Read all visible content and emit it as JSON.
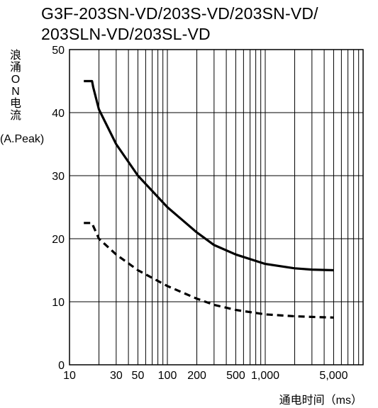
{
  "chart_data": {
    "type": "line",
    "title_lines": [
      "G3F-203SN-VD/203S-VD/203SN-VD/",
      "203SLN-VD/203SL-VD"
    ],
    "ylabel_chars": [
      "浪",
      "涌",
      "O",
      "N",
      "电",
      "流"
    ],
    "y_unit": "(A.Peak)",
    "xlabel": "通电时间（ms）",
    "x_scale": "log",
    "xlim": [
      10,
      10000
    ],
    "ylim": [
      0,
      50
    ],
    "grid": true,
    "x_ticks": [
      {
        "value": 10,
        "label": "10"
      },
      {
        "value": 30,
        "label": "30"
      },
      {
        "value": 50,
        "label": "50"
      },
      {
        "value": 100,
        "label": "100"
      },
      {
        "value": 200,
        "label": "200"
      },
      {
        "value": 500,
        "label": "500"
      },
      {
        "value": 1000,
        "label": "1,000"
      },
      {
        "value": 5000,
        "label": "5,000"
      }
    ],
    "y_ticks": [
      0,
      10,
      20,
      30,
      40,
      50
    ],
    "series": [
      {
        "style": "solid",
        "x": [
          14,
          17,
          17.5,
          20,
          30,
          50,
          100,
          200,
          300,
          500,
          1000,
          2000,
          3000,
          5000
        ],
        "y": [
          45,
          45,
          44,
          40.5,
          35,
          30,
          25,
          21,
          19,
          17.5,
          16,
          15.3,
          15.1,
          15
        ]
      },
      {
        "style": "dashed",
        "x": [
          14,
          17,
          17.5,
          20,
          30,
          50,
          100,
          200,
          300,
          500,
          1000,
          2000,
          3000,
          5000
        ],
        "y": [
          22.5,
          22.5,
          22,
          20,
          17.5,
          15,
          12.5,
          10.5,
          9.5,
          8.7,
          8,
          7.7,
          7.6,
          7.5
        ]
      }
    ]
  }
}
